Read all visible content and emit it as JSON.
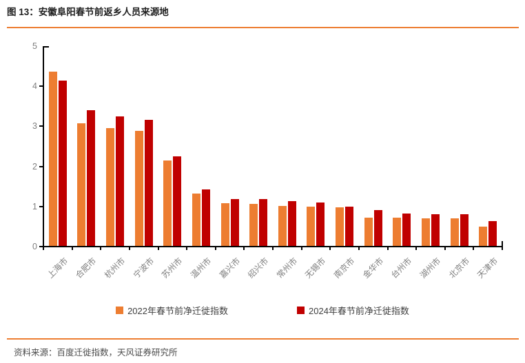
{
  "header": {
    "title": "图 13：安徽阜阳春节前返乡人员来源地"
  },
  "footer": {
    "source": "资料来源：百度迁徙指数，天风证券研究所"
  },
  "colors": {
    "series_2022": "#ED7D31",
    "series_2024": "#C00000",
    "divider": "#ED7D31",
    "axis": "#000000",
    "tick_label": "#7F7F7F",
    "legend_text": "#404040"
  },
  "chart_data": {
    "type": "bar",
    "title": "安徽阜阳春节前返乡人员来源地",
    "categories": [
      "上海市",
      "合肥市",
      "杭州市",
      "宁波市",
      "苏州市",
      "温州市",
      "嘉兴市",
      "绍兴市",
      "常州市",
      "无锡市",
      "南京市",
      "金华市",
      "台州市",
      "湖州市",
      "北京市",
      "天津市"
    ],
    "series": [
      {
        "name": "2022年春节前净迁徙指数",
        "color": "#ED7D31",
        "values": [
          4.37,
          3.08,
          2.96,
          2.88,
          2.15,
          1.33,
          1.08,
          1.06,
          1.02,
          0.99,
          0.98,
          0.73,
          0.73,
          0.7,
          0.7,
          0.5
        ]
      },
      {
        "name": "2024年春节前净迁徙指数",
        "color": "#C00000",
        "values": [
          4.15,
          3.41,
          3.25,
          3.16,
          2.26,
          1.43,
          1.18,
          1.18,
          1.13,
          1.1,
          1.0,
          0.91,
          0.83,
          0.8,
          0.8,
          0.63
        ]
      }
    ],
    "xlabel": "",
    "ylabel": "",
    "ylim": [
      0,
      5
    ],
    "yticks": [
      0,
      1,
      2,
      3,
      4,
      5
    ],
    "grid": false,
    "legend_position": "bottom"
  }
}
